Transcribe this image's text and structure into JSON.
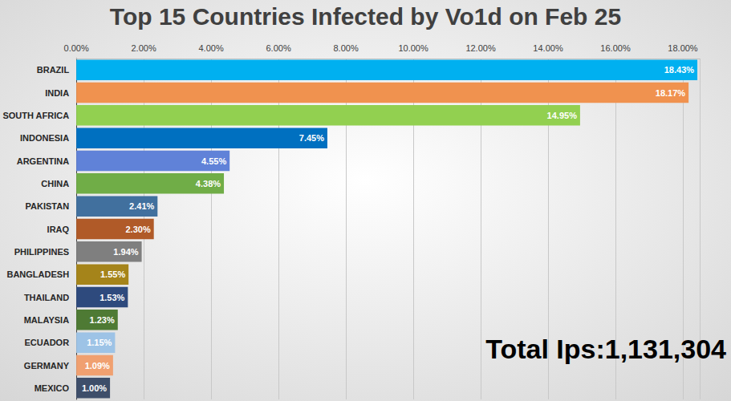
{
  "chart_data": {
    "type": "bar",
    "title": "Top 15 Countries Infected by Vo1d on Feb 25",
    "orientation": "horizontal",
    "categories": [
      "BRAZIL",
      "INDIA",
      "SOUTH AFRICA",
      "INDONESIA",
      "ARGENTINA",
      "CHINA",
      "PAKISTAN",
      "IRAQ",
      "PHILIPPINES",
      "BANGLADESH",
      "THAILAND",
      "MALAYSIA",
      "ECUADOR",
      "GERMANY",
      "MEXICO"
    ],
    "values": [
      18.43,
      18.17,
      14.95,
      7.45,
      4.55,
      4.38,
      2.41,
      2.3,
      1.94,
      1.55,
      1.53,
      1.23,
      1.15,
      1.09,
      1.0
    ],
    "value_labels": [
      "18.43%",
      "18.17%",
      "14.95%",
      "7.45%",
      "4.55%",
      "4.38%",
      "2.41%",
      "2.30%",
      "1.94%",
      "1.55%",
      "1.53%",
      "1.23%",
      "1.15%",
      "1.09%",
      "1.00%"
    ],
    "colors": [
      "#00b0f0",
      "#f0924f",
      "#92d050",
      "#0070c0",
      "#6082d8",
      "#70ad47",
      "#41709e",
      "#b05a28",
      "#7f7f7f",
      "#a5841a",
      "#2e4a7d",
      "#4e7a34",
      "#9dc3e6",
      "#f0a070",
      "#3e4e6a"
    ],
    "xlim": [
      0,
      18.5
    ],
    "xticks": [
      {
        "value": 0,
        "label": "0.00%"
      },
      {
        "value": 2,
        "label": "2.00%"
      },
      {
        "value": 4,
        "label": "4.00%"
      },
      {
        "value": 6,
        "label": "6.00%"
      },
      {
        "value": 8,
        "label": "8.00%"
      },
      {
        "value": 10,
        "label": "10.00%"
      },
      {
        "value": 12,
        "label": "12.00%"
      },
      {
        "value": 14,
        "label": "14.00%"
      },
      {
        "value": 16,
        "label": "16.00%"
      },
      {
        "value": 18,
        "label": "18.00%"
      }
    ],
    "annotation": "Total Ips:1,131,304",
    "grid": true,
    "data_labels": true
  }
}
